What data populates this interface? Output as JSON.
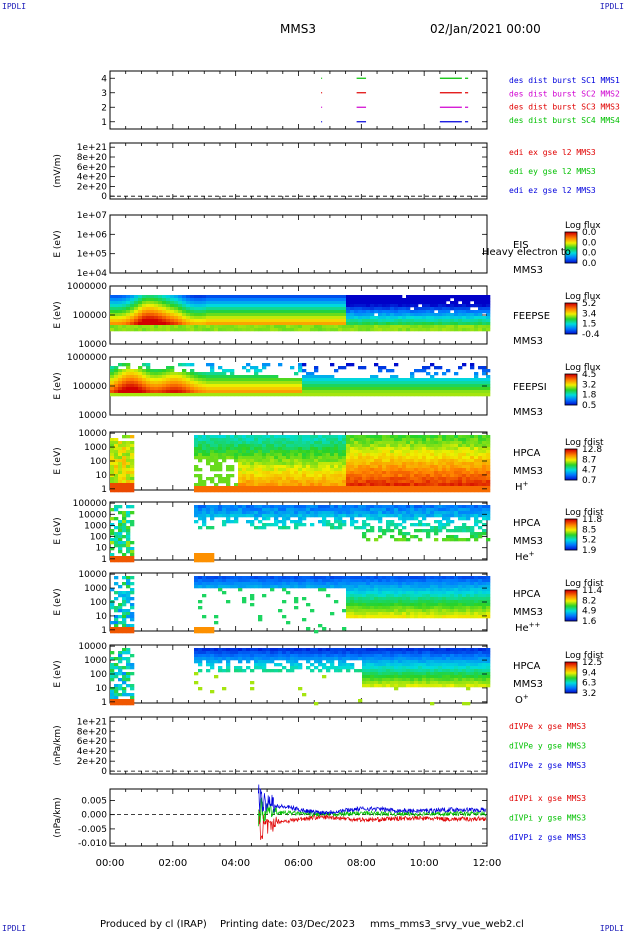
{
  "corner_labels": {
    "tl": "IPDLI",
    "tr": "IPDLI",
    "bl": "IPDLI",
    "br": "IPDLI"
  },
  "header": {
    "spacecraft": "MMS3",
    "datetime": "02/Jan/2021 00:00"
  },
  "footer": {
    "produced_by": "Produced by cl (IRAP)",
    "printing_date": "Printing date: 03/Dec/2023",
    "script": "mms_mms3_srvy_vue_web2.cl"
  },
  "colors": {
    "red": "#e00000",
    "green": "#00c000",
    "blue": "#0000dd",
    "magenta": "#d000d0"
  },
  "chart_data": [
    {
      "type": "scatter",
      "panel": "burst",
      "ylim": [
        0.5,
        4.5
      ],
      "yticks": [
        "1",
        "2",
        "3",
        "4"
      ],
      "legend": [
        "des dist burst SC1 MMS1",
        "des dist burst SC2 MMS2",
        "des dist burst SC3 MMS3",
        "des dist burst SC4 MMS4"
      ],
      "series": [
        {
          "sc": 4,
          "color": "green",
          "intervals": [
            [
              6.72,
              6.74
            ],
            [
              7.85,
              8.15
            ],
            [
              10.5,
              11.2
            ],
            [
              11.3,
              11.4
            ]
          ]
        },
        {
          "sc": 3,
          "color": "red",
          "intervals": [
            [
              6.72,
              6.74
            ],
            [
              7.85,
              8.15
            ],
            [
              10.5,
              11.2
            ],
            [
              11.3,
              11.4
            ]
          ]
        },
        {
          "sc": 2,
          "color": "magenta",
          "intervals": [
            [
              6.72,
              6.74
            ],
            [
              7.85,
              8.15
            ],
            [
              10.5,
              11.2
            ],
            [
              11.3,
              11.4
            ]
          ]
        },
        {
          "sc": 1,
          "color": "blue",
          "intervals": [
            [
              6.72,
              6.74
            ],
            [
              7.85,
              8.15
            ],
            [
              10.5,
              11.2
            ],
            [
              11.3,
              11.4
            ]
          ]
        }
      ]
    },
    {
      "type": "line",
      "panel": "edi",
      "ylabel": "(mV/m)",
      "yticks": [
        "0",
        "2e+20",
        "4e+20",
        "6e+20",
        "8e+20",
        "1e+21"
      ],
      "legend": [
        "edi ex gse l2 MMS3",
        "edi ey gse l2 MMS3",
        "edi ez gse l2 MMS3"
      ]
    },
    {
      "type": "heatmap",
      "panel": "eis",
      "ylabel": "E (eV)",
      "yticks": [
        "1e+04",
        "1e+05",
        "1e+06",
        "1e+07"
      ],
      "name_lines": [
        "EIS",
        "MMS3"
      ],
      "overlay": "Heavy electron to",
      "colorbar": {
        "title": "Log flux",
        "ticks": [
          "0.0",
          "0.0",
          "0.0",
          "0.0"
        ]
      }
    },
    {
      "type": "heatmap",
      "panel": "feepse",
      "ylabel": "E (eV)",
      "yticks": [
        "10000",
        "100000",
        "1000000"
      ],
      "name_lines": [
        "FEEPSE",
        "MMS3"
      ],
      "colorbar": {
        "title": "Log flux",
        "ticks": [
          "5.2",
          "3.4",
          "1.5",
          "-0.4"
        ]
      }
    },
    {
      "type": "heatmap",
      "panel": "feepsi",
      "ylabel": "E (eV)",
      "yticks": [
        "10000",
        "100000",
        "1000000"
      ],
      "name_lines": [
        "FEEPSI",
        "MMS3"
      ],
      "colorbar": {
        "title": "Log flux",
        "ticks": [
          "4.5",
          "3.2",
          "1.8",
          "0.5"
        ]
      }
    },
    {
      "type": "heatmap",
      "panel": "hpca_h",
      "ylabel": "E (eV)",
      "yticks": [
        "1",
        "10",
        "100",
        "1000",
        "10000"
      ],
      "name_lines": [
        "HPCA",
        "MMS3"
      ],
      "species": "H",
      "charge": "+",
      "colorbar": {
        "title": "Log fdist",
        "ticks": [
          "12.8",
          "8.7",
          "4.7",
          "0.7"
        ]
      }
    },
    {
      "type": "heatmap",
      "panel": "hpca_he",
      "ylabel": "E (eV)",
      "yticks": [
        "1",
        "10",
        "100",
        "1000",
        "10000",
        "100000"
      ],
      "name_lines": [
        "HPCA",
        "MMS3"
      ],
      "species": "He",
      "charge": "+",
      "colorbar": {
        "title": "Log fdist",
        "ticks": [
          "11.8",
          "8.5",
          "5.2",
          "1.9"
        ]
      }
    },
    {
      "type": "heatmap",
      "panel": "hpca_he2",
      "ylabel": "E (eV)",
      "yticks": [
        "1",
        "10",
        "100",
        "1000",
        "10000"
      ],
      "name_lines": [
        "HPCA",
        "MMS3"
      ],
      "species": "He",
      "charge": "++",
      "colorbar": {
        "title": "Log fdist",
        "ticks": [
          "11.4",
          "8.2",
          "4.9",
          "1.6"
        ]
      }
    },
    {
      "type": "heatmap",
      "panel": "hpca_o",
      "ylabel": "E (eV)",
      "yticks": [
        "1",
        "10",
        "100",
        "1000",
        "10000"
      ],
      "name_lines": [
        "HPCA",
        "MMS3"
      ],
      "species": "O",
      "charge": "+",
      "colorbar": {
        "title": "Log fdist",
        "ticks": [
          "12.5",
          "9.4",
          "6.3",
          "3.2"
        ]
      }
    },
    {
      "type": "line",
      "panel": "divpe",
      "ylabel": "(nPa/km)",
      "yticks": [
        "0",
        "2e+20",
        "4e+20",
        "6e+20",
        "8e+20",
        "1e+21"
      ],
      "legend": [
        "dIVPe x gse MMS3",
        "dIVPe y gse MMS3",
        "dIVPe z gse MMS3"
      ]
    },
    {
      "type": "line",
      "panel": "divpi",
      "ylabel": "(nPa/km)",
      "yticks": [
        "-0.010",
        "-0.005",
        "0.000",
        "0.005"
      ],
      "ylim": [
        -0.011,
        0.009
      ],
      "legend": [
        "dIVPi x gse MMS3",
        "dIVPi y gse MMS3",
        "dIVPi z gse MMS3"
      ]
    }
  ],
  "time_axis": {
    "labels": [
      "00:00",
      "02:00",
      "04:00",
      "06:00",
      "08:00",
      "10:00",
      "12:00"
    ],
    "xlim_hours": [
      0,
      12
    ]
  }
}
